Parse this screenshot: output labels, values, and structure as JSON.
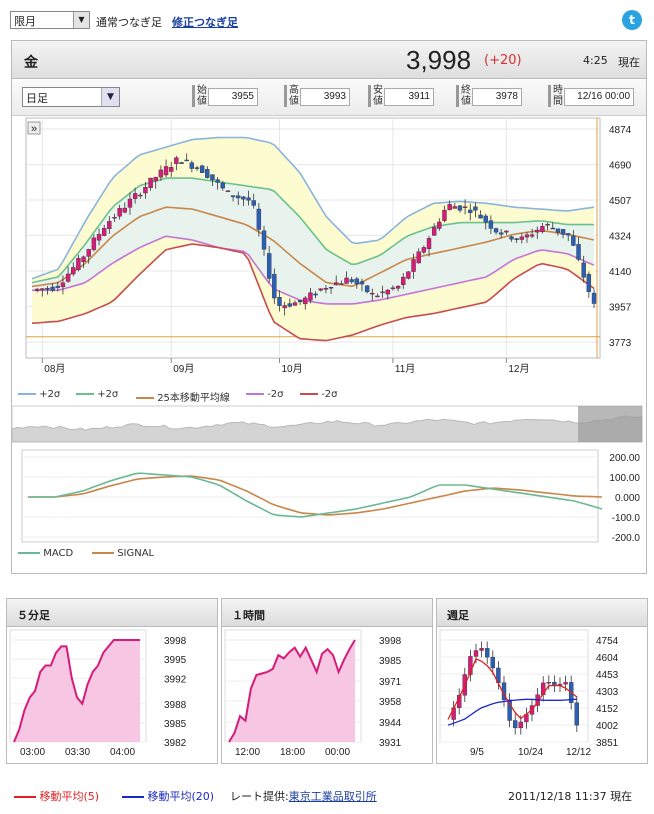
{
  "top": {
    "period_select": "限月",
    "label": "通常つなぎ足",
    "link": "修正つなぎ足",
    "twitter_icon": "t"
  },
  "header": {
    "name": "金",
    "price": "3,998",
    "change": "(+20)",
    "time": "4:25",
    "time_label": "現在"
  },
  "ohlc": {
    "interval": "日足",
    "items": [
      {
        "label": "始値",
        "value": "3955"
      },
      {
        "label": "高値",
        "value": "3993"
      },
      {
        "label": "安値",
        "value": "3911"
      },
      {
        "label": "終値",
        "value": "3978"
      },
      {
        "label": "時間",
        "value": "12/16 00:00"
      }
    ]
  },
  "chart_data": [
    {
      "type": "candlestick",
      "yticks": [
        "4874",
        "4690",
        "4507",
        "4324",
        "4140",
        "3957",
        "3773"
      ],
      "xticks": [
        "08月",
        "09月",
        "10月",
        "11月",
        "12月"
      ],
      "legend": [
        "+2σ",
        "+2σ",
        "25本移動平均線",
        "-2σ",
        "-2σ"
      ],
      "colors": {
        "up": "#d81b7a",
        "down": "#2a5fb8",
        "ma": "#c9864a",
        "b2u": "#8ab4e0",
        "b1u": "#6cc08b",
        "b1d": "#c474d8",
        "b2d": "#c84c4c"
      }
    },
    {
      "type": "line",
      "name": "MACD",
      "yticks": [
        "200.00",
        "100.00",
        "0.000",
        "-100.0",
        "-200.0"
      ],
      "legend": [
        "MACD",
        "SIGNAL"
      ],
      "colors": {
        "macd": "#6ab894",
        "signal": "#c9864a"
      }
    },
    {
      "type": "area",
      "title": "５分足",
      "yticks": [
        "3998",
        "3995",
        "3992",
        "3988",
        "3985",
        "3982"
      ],
      "xticks": [
        "03:00",
        "03:30",
        "04:00"
      ],
      "values": [
        3982,
        3984,
        3987,
        3989,
        3990,
        3993,
        3994,
        3994,
        3996,
        3997,
        3997,
        3992,
        3989,
        3988,
        3991,
        3993,
        3994,
        3996,
        3997,
        3998,
        3998,
        3998,
        3998,
        3998,
        3998
      ]
    },
    {
      "type": "area",
      "title": "１時間",
      "yticks": [
        "3998",
        "3985",
        "3971",
        "3958",
        "3944",
        "3931"
      ],
      "xticks": [
        "12:00",
        "18:00",
        "00:00"
      ],
      "values": [
        3931,
        3937,
        3948,
        3945,
        3966,
        3975,
        3976,
        3977,
        3979,
        3988,
        3986,
        3990,
        3993,
        3987,
        3993,
        3985,
        3977,
        3989,
        3992,
        3988,
        3977,
        3985,
        3992,
        3998
      ]
    },
    {
      "type": "candlestick",
      "title": "週足",
      "yticks": [
        "4754",
        "4604",
        "4453",
        "4303",
        "4152",
        "4002",
        "3851"
      ],
      "xticks": [
        "9/5",
        "10/24",
        "12/12"
      ]
    }
  ],
  "footer": {
    "ma5": "移動平均(5)",
    "ma20": "移動平均(20)",
    "source_label": "レート提供:",
    "source": "東京工業品取引所",
    "datetime": "2011/12/18 11:37 現在"
  }
}
